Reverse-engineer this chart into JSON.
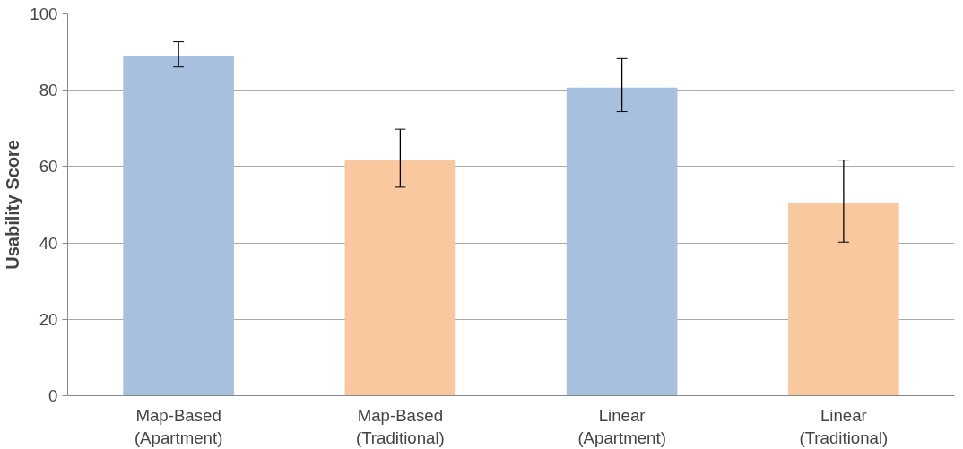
{
  "chart_data": {
    "type": "bar",
    "ylabel": "Usability Score",
    "categories": [
      "Map-Based\n(Apartment)",
      "Map-Based\n(Traditional)",
      "Linear\n(Apartment)",
      "Linear\n(Traditional)"
    ],
    "values": [
      89,
      61.7,
      80.7,
      50.5
    ],
    "colors": [
      "#a7c0de",
      "#f9c89f",
      "#a7c0de",
      "#f9c89f"
    ],
    "errors": [
      [
        86.1,
        92.7
      ],
      [
        54.6,
        69.8
      ],
      [
        74.4,
        88.3
      ],
      [
        40.2,
        61.7
      ]
    ],
    "ylim": [
      0,
      100
    ],
    "yticks": [
      0,
      20,
      40,
      60,
      80,
      100
    ],
    "grid": "y"
  }
}
